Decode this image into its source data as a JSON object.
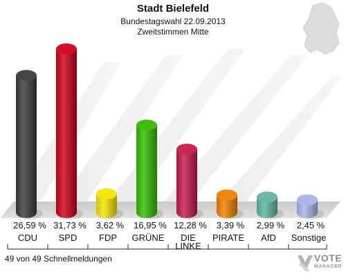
{
  "title": "Stadt Bielefeld",
  "subtitle1": "Bundestagswahl 22.09.2013",
  "subtitle2": "Zweitstimmen Mitte",
  "footer": "49 von 49 Schnellmeldungen",
  "logo": {
    "line1": "VOTE",
    "line2": "MANAGER"
  },
  "chart_data": {
    "type": "bar",
    "categories": [
      "CDU",
      "SPD",
      "FDP",
      "GRÜNE",
      "DIE LINKE",
      "PIRATE",
      "AfD",
      "Sonstige"
    ],
    "values": [
      26.59,
      31.73,
      3.62,
      16.95,
      12.28,
      3.39,
      2.99,
      2.45
    ],
    "value_labels": [
      "26,59 %",
      "31,73 %",
      "3,62 %",
      "16,95 %",
      "12,28 %",
      "3,39 %",
      "2,99 %",
      "2,45 %"
    ],
    "colors": [
      "#3b3b3b",
      "#d0001a",
      "#f5e400",
      "#33bb00",
      "#c8194a",
      "#f08000",
      "#5fb5a0",
      "#a8b4e8"
    ],
    "ylim": [
      0,
      31.73
    ],
    "grid": false
  }
}
